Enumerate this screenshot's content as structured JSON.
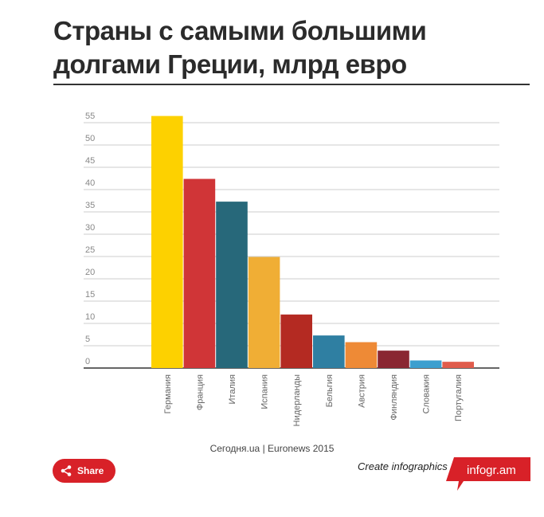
{
  "title": "Страны с самыми большими долгами Греции, млрд евро",
  "source": "Сегодня.ua | Euronews 2015",
  "share_label": "Share",
  "create_label": "Create infographics",
  "logo_text": "infogr.am",
  "colors": {
    "accent": "#d82128"
  },
  "chart_data": {
    "type": "bar",
    "title": "Страны с самыми большими долгами Греции, млрд евро",
    "xlabel": "",
    "ylabel": "",
    "ylim": [
      0,
      55
    ],
    "yticks": [
      0,
      5,
      10,
      15,
      20,
      25,
      30,
      35,
      40,
      45,
      50,
      55
    ],
    "grid": true,
    "categories": [
      "Германия",
      "Франция",
      "Италия",
      "Испания",
      "Нидерланды",
      "Бельгия",
      "Австрия",
      "Финляндия",
      "Словакия",
      "Португалия"
    ],
    "values": [
      56.5,
      42.4,
      37.3,
      24.9,
      12.0,
      7.3,
      5.8,
      3.9,
      1.7,
      1.4
    ],
    "bar_colors": [
      "#fdd100",
      "#d03537",
      "#27687a",
      "#f0ae35",
      "#b42a22",
      "#2f7fa2",
      "#ee8a36",
      "#8a2732",
      "#3d9fcf",
      "#e05c4c"
    ]
  }
}
